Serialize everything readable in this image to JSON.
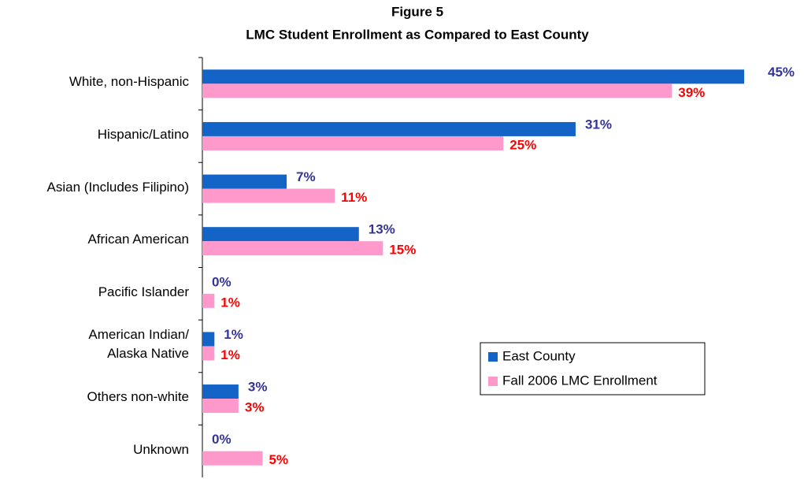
{
  "chart_data": {
    "type": "bar",
    "orientation": "horizontal",
    "title": "Figure 5",
    "subtitle": "LMC Student Enrollment as Compared to East County",
    "categories": [
      "White, non-Hispanic",
      "Hispanic/Latino",
      "Asian (Includes Filipino)",
      "African American",
      "Pacific Islander",
      "American Indian/\nAlaska Native",
      "Others non-white",
      "Unknown"
    ],
    "series": [
      {
        "name": "East County",
        "color": "#1464c8",
        "label_color": "#333399",
        "values": [
          45,
          31,
          7,
          13,
          0,
          1,
          3,
          0
        ],
        "value_labels": [
          "45%",
          "31%",
          "7%",
          "13%",
          "0%",
          "1%",
          "3%",
          "0%"
        ]
      },
      {
        "name": "Fall 2006 LMC Enrollment",
        "color": "#ff99cc",
        "label_color": "#ff0000",
        "values": [
          39,
          25,
          11,
          15,
          1,
          1,
          3,
          5
        ],
        "value_labels": [
          "39%",
          "25%",
          "11%",
          "15%",
          "1%",
          "1%",
          "3%",
          "5%"
        ]
      }
    ],
    "legend": "right"
  }
}
